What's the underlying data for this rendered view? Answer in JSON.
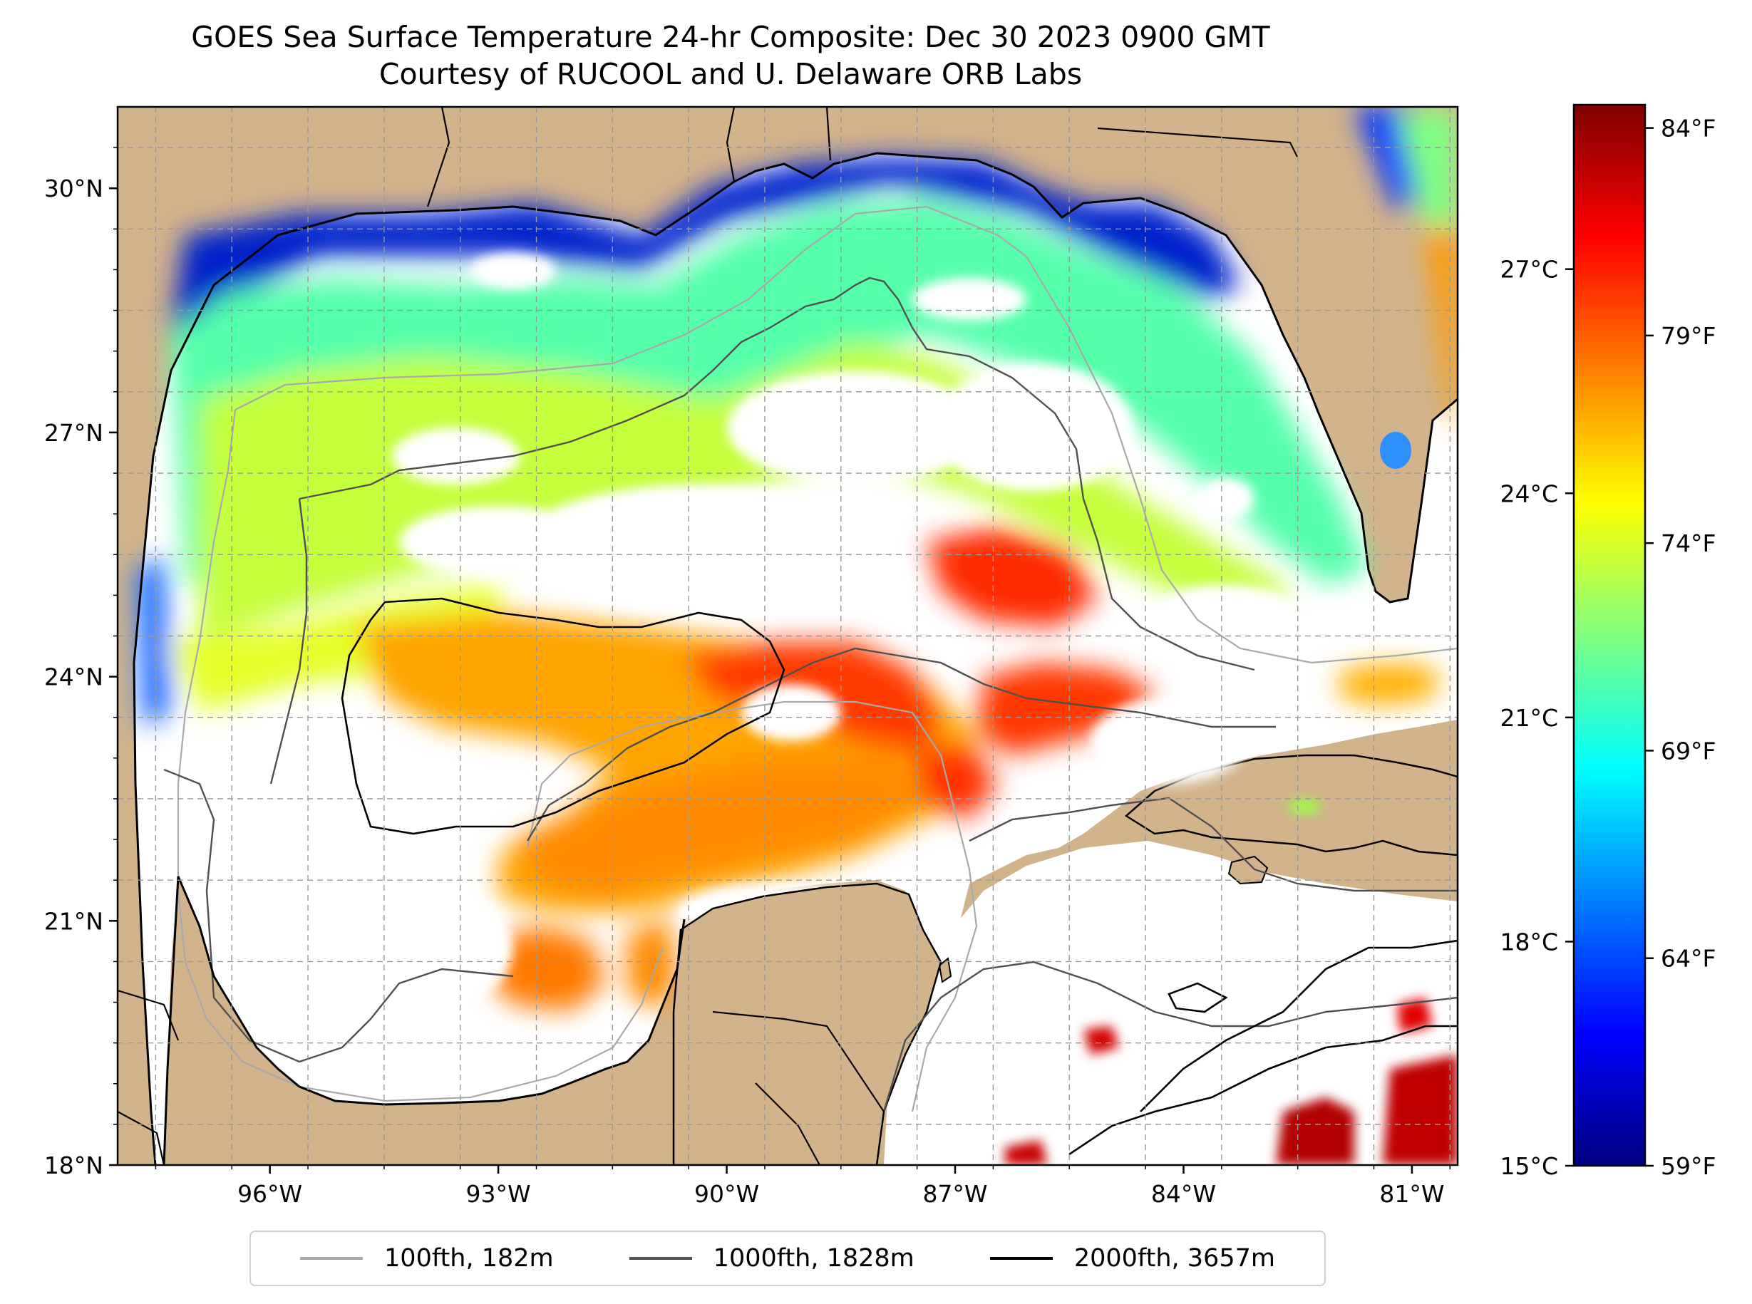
{
  "title": {
    "line1": "GOES Sea Surface Temperature 24-hr Composite: Dec 30 2023 0900 GMT",
    "line2": "Courtesy of RUCOOL and U. Delaware ORB Labs"
  },
  "map": {
    "land_color": "#d2b48c",
    "no_data_color": "#ffffff",
    "lat_ticks": [
      {
        "value": 30,
        "label": "30°N"
      },
      {
        "value": 27,
        "label": "27°N"
      },
      {
        "value": 24,
        "label": "24°N"
      },
      {
        "value": 21,
        "label": "21°N"
      },
      {
        "value": 18,
        "label": "18°N"
      }
    ],
    "lon_ticks": [
      {
        "value": -96,
        "label": "96°W"
      },
      {
        "value": -93,
        "label": "93°W"
      },
      {
        "value": -90,
        "label": "90°W"
      },
      {
        "value": -87,
        "label": "87°W"
      },
      {
        "value": -84,
        "label": "84°W"
      },
      {
        "value": -81,
        "label": "81°W"
      }
    ],
    "extent": {
      "lon_min": -98,
      "lon_max": -80.4,
      "lat_min": 18,
      "lat_max": 31
    }
  },
  "colorbar": {
    "colormap": "jet",
    "colors": [
      "#00007f",
      "#0000ff",
      "#007fff",
      "#00ffff",
      "#7fff7f",
      "#ffff00",
      "#ff7f00",
      "#ff0000",
      "#7f0000"
    ],
    "celsius": {
      "min": 15,
      "max": 29.2,
      "ticks": [
        {
          "value": 27,
          "label": "27°C"
        },
        {
          "value": 24,
          "label": "24°C"
        },
        {
          "value": 21,
          "label": "21°C"
        },
        {
          "value": 18,
          "label": "18°C"
        },
        {
          "value": 15,
          "label": "15°C"
        }
      ]
    },
    "fahrenheit": {
      "ticks": [
        {
          "value": 84,
          "label": "84°F"
        },
        {
          "value": 79,
          "label": "79°F"
        },
        {
          "value": 74,
          "label": "74°F"
        },
        {
          "value": 69,
          "label": "69°F"
        },
        {
          "value": 64,
          "label": "64°F"
        },
        {
          "value": 59,
          "label": "59°F"
        }
      ]
    }
  },
  "legend": {
    "items": [
      {
        "label": "100fth, 182m",
        "color": "#a9a9a9"
      },
      {
        "label": "1000fth, 1828m",
        "color": "#505050"
      },
      {
        "label": "2000fth, 3657m",
        "color": "#000000"
      }
    ]
  }
}
